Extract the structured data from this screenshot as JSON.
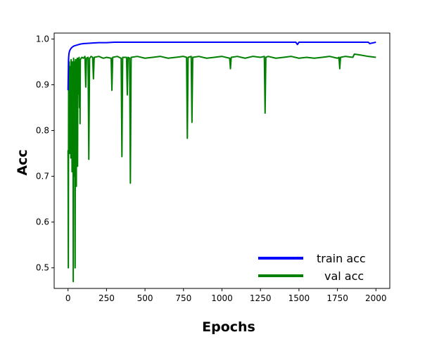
{
  "chart_data": {
    "type": "line",
    "title": "",
    "xlabel": "Epochs",
    "ylabel": "Acc",
    "xlim": [
      -90,
      2090
    ],
    "ylim": [
      0.455,
      1.013
    ],
    "xticks": [
      0,
      250,
      500,
      750,
      1000,
      1250,
      1500,
      1750,
      2000
    ],
    "xtick_labels": [
      "0",
      "250",
      "500",
      "750",
      "1000",
      "1250",
      "1500",
      "1750",
      "2000"
    ],
    "yticks": [
      0.5,
      0.6,
      0.7,
      0.8,
      0.9,
      1.0
    ],
    "ytick_labels": [
      "0.5",
      "0.6",
      "0.7",
      "0.8",
      "0.9",
      "1.0"
    ],
    "grid": false,
    "legend_position": "lower-right",
    "series": [
      {
        "name": "train acc",
        "color": "#0000ff",
        "x": [
          0,
          3,
          6,
          10,
          15,
          20,
          30,
          40,
          60,
          80,
          100,
          150,
          200,
          250,
          300,
          400,
          500,
          600,
          700,
          800,
          900,
          1000,
          1100,
          1200,
          1300,
          1400,
          1480,
          1490,
          1500,
          1600,
          1700,
          1800,
          1900,
          1950,
          1960,
          2000
        ],
        "values": [
          0.888,
          0.955,
          0.968,
          0.974,
          0.977,
          0.98,
          0.983,
          0.985,
          0.987,
          0.989,
          0.99,
          0.991,
          0.992,
          0.992,
          0.993,
          0.993,
          0.993,
          0.993,
          0.993,
          0.993,
          0.993,
          0.993,
          0.993,
          0.993,
          0.993,
          0.993,
          0.993,
          0.988,
          0.993,
          0.993,
          0.993,
          0.993,
          0.993,
          0.993,
          0.99,
          0.993
        ]
      },
      {
        "name": "val acc",
        "color": "#008000",
        "x": [
          0,
          2,
          4,
          6,
          8,
          10,
          12,
          14,
          16,
          18,
          20,
          22,
          24,
          26,
          28,
          30,
          32,
          34,
          36,
          38,
          40,
          42,
          44,
          46,
          48,
          50,
          52,
          54,
          56,
          58,
          60,
          62,
          64,
          66,
          68,
          70,
          72,
          74,
          76,
          78,
          80,
          90,
          100,
          110,
          115,
          120,
          130,
          135,
          140,
          150,
          160,
          165,
          170,
          200,
          230,
          250,
          280,
          285,
          290,
          320,
          345,
          350,
          355,
          380,
          385,
          390,
          400,
          405,
          410,
          450,
          500,
          550,
          600,
          650,
          700,
          750,
          770,
          775,
          780,
          800,
          805,
          810,
          850,
          900,
          950,
          1000,
          1050,
          1055,
          1060,
          1100,
          1150,
          1200,
          1250,
          1275,
          1280,
          1285,
          1300,
          1350,
          1400,
          1450,
          1500,
          1550,
          1600,
          1650,
          1700,
          1750,
          1760,
          1765,
          1770,
          1800,
          1850,
          1860,
          1900,
          1950,
          2000
        ],
        "values": [
          0.757,
          0.5,
          0.96,
          0.79,
          0.95,
          0.75,
          0.93,
          0.85,
          0.94,
          0.74,
          0.955,
          0.88,
          0.94,
          0.71,
          0.95,
          0.82,
          0.94,
          0.47,
          0.958,
          0.7,
          0.94,
          0.76,
          0.95,
          0.5,
          0.955,
          0.76,
          0.94,
          0.678,
          0.955,
          0.9,
          0.958,
          0.722,
          0.95,
          0.88,
          0.958,
          0.92,
          0.96,
          0.85,
          0.945,
          0.815,
          0.955,
          0.96,
          0.958,
          0.962,
          0.895,
          0.958,
          0.96,
          0.737,
          0.958,
          0.962,
          0.96,
          0.913,
          0.96,
          0.962,
          0.958,
          0.96,
          0.958,
          0.888,
          0.96,
          0.962,
          0.958,
          0.743,
          0.96,
          0.96,
          0.878,
          0.96,
          0.958,
          0.685,
          0.96,
          0.962,
          0.958,
          0.96,
          0.962,
          0.958,
          0.96,
          0.962,
          0.96,
          0.783,
          0.96,
          0.962,
          0.818,
          0.96,
          0.962,
          0.958,
          0.96,
          0.962,
          0.958,
          0.935,
          0.96,
          0.962,
          0.958,
          0.962,
          0.96,
          0.962,
          0.838,
          0.96,
          0.962,
          0.958,
          0.96,
          0.962,
          0.958,
          0.96,
          0.958,
          0.96,
          0.962,
          0.958,
          0.96,
          0.935,
          0.96,
          0.962,
          0.96,
          0.967,
          0.965,
          0.962,
          0.96
        ]
      }
    ]
  }
}
